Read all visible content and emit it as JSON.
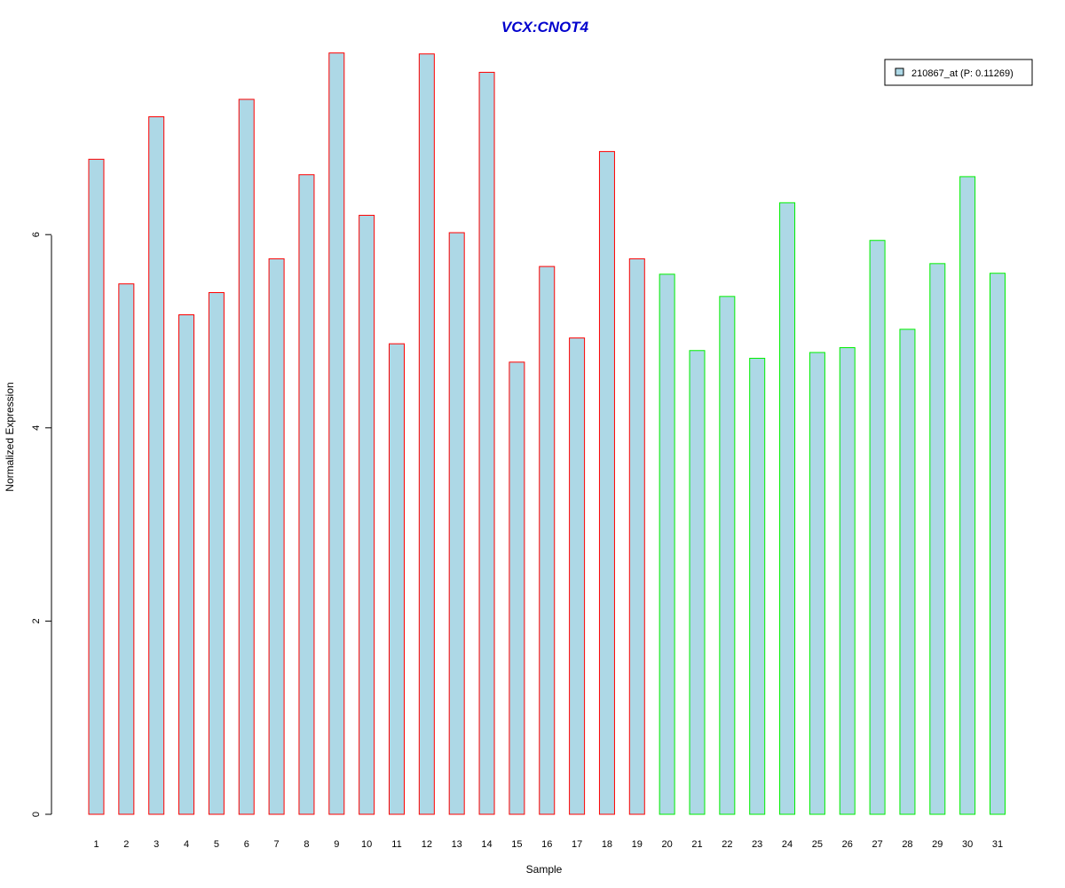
{
  "chart_data": {
    "type": "bar",
    "title": "VCX:CNOT4",
    "xlabel": "Sample",
    "ylabel": "Normalized Expression",
    "categories": [
      "1",
      "2",
      "3",
      "4",
      "5",
      "6",
      "7",
      "8",
      "9",
      "10",
      "11",
      "12",
      "13",
      "14",
      "15",
      "16",
      "17",
      "18",
      "19",
      "20",
      "21",
      "22",
      "23",
      "24",
      "25",
      "26",
      "27",
      "28",
      "29",
      "30",
      "31"
    ],
    "series": [
      {
        "name": "210867_at (P: 0.11269)",
        "values": [
          6.78,
          5.49,
          7.22,
          5.17,
          5.4,
          7.4,
          5.75,
          6.62,
          7.88,
          6.2,
          4.87,
          7.87,
          6.02,
          7.68,
          4.68,
          5.67,
          4.93,
          6.86,
          5.75,
          5.59,
          4.8,
          5.36,
          4.72,
          6.33,
          4.78,
          4.83,
          5.94,
          5.02,
          5.7,
          6.6,
          5.6
        ]
      }
    ],
    "group_colors": [
      "#ff0000",
      "#ff0000",
      "#ff0000",
      "#ff0000",
      "#ff0000",
      "#ff0000",
      "#ff0000",
      "#ff0000",
      "#ff0000",
      "#ff0000",
      "#ff0000",
      "#ff0000",
      "#ff0000",
      "#ff0000",
      "#ff0000",
      "#ff0000",
      "#ff0000",
      "#ff0000",
      "#ff0000",
      "#00ee00",
      "#00ee00",
      "#00ee00",
      "#00ee00",
      "#00ee00",
      "#00ee00",
      "#00ee00",
      "#00ee00",
      "#00ee00",
      "#00ee00",
      "#00ee00",
      "#00ee00"
    ],
    "bar_fill": "#add8e6",
    "title_color": "#0000cd",
    "yticks": [
      0,
      2,
      4,
      6
    ],
    "ylim": [
      0,
      7.9
    ],
    "legend_position": "top-right",
    "grid": false
  }
}
